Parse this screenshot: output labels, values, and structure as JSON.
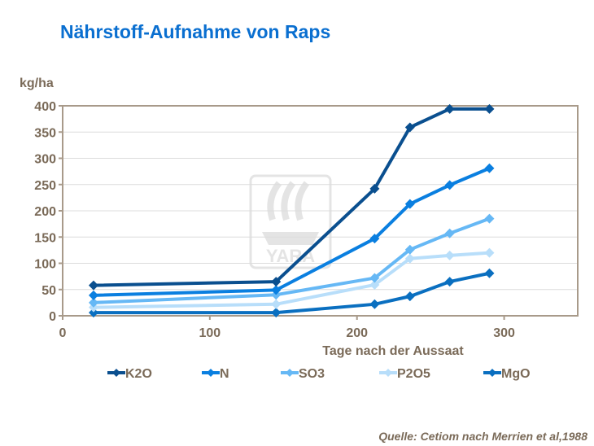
{
  "title": "Nährstoff-Aufnahme von Raps",
  "source": "Quelle: Cetiom nach Merrien et al,1988",
  "watermark": "YARA",
  "chart_data": {
    "type": "line",
    "title": "Nährstoff-Aufnahme von Raps",
    "xlabel": "Tage nach der Aussaat",
    "ylabel": "kg/ha",
    "xlim": [
      0,
      350
    ],
    "ylim": [
      0,
      400
    ],
    "xticks": [
      0,
      100,
      200,
      300
    ],
    "yticks": [
      0,
      50,
      100,
      150,
      200,
      250,
      300,
      350,
      400
    ],
    "grid": "horizontal",
    "legend": "bottom",
    "x": [
      21,
      145,
      212,
      236,
      263,
      290
    ],
    "series": [
      {
        "name": "K2O",
        "color": "#0a4f8f",
        "values": [
          58,
          65,
          242,
          359,
          394,
          394
        ]
      },
      {
        "name": "N",
        "color": "#0a7fe0",
        "values": [
          39,
          49,
          147,
          213,
          249,
          281
        ]
      },
      {
        "name": "SO3",
        "color": "#66b8f5",
        "values": [
          25,
          40,
          72,
          126,
          157,
          185
        ]
      },
      {
        "name": "P2O5",
        "color": "#b8defa",
        "values": [
          16,
          22,
          59,
          109,
          115,
          120
        ]
      },
      {
        "name": "MgO",
        "color": "#0a6fc0",
        "values": [
          6,
          6,
          22,
          37,
          65,
          81
        ]
      }
    ]
  }
}
